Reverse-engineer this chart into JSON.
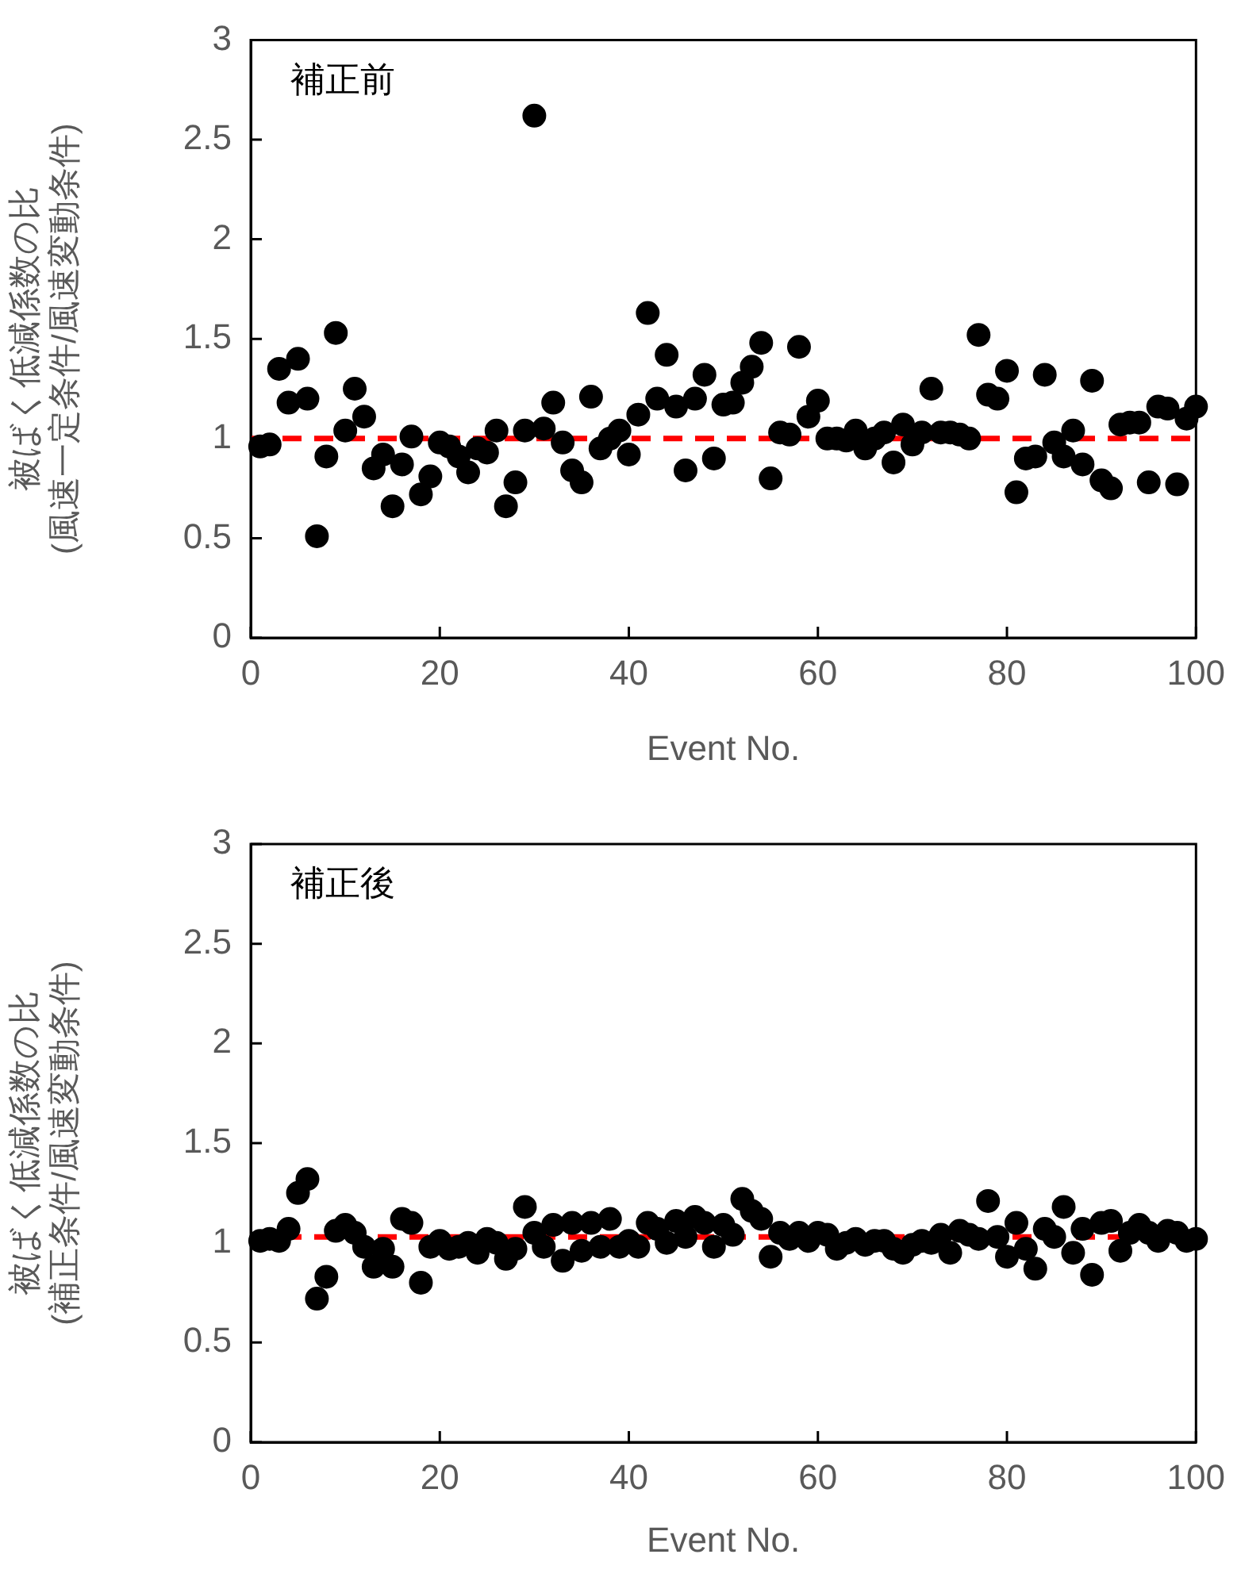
{
  "chart_data": [
    {
      "type": "scatter",
      "xlabel": "Event No.",
      "ylabel": "被ばく低減係数の比\n(風速一定条件/風速変動条件)",
      "annotations": [
        "補正前"
      ],
      "marker": "circle",
      "grid": false,
      "legend": false,
      "xlim": [
        0,
        100
      ],
      "xticks": [
        0,
        20,
        40,
        60,
        80,
        100
      ],
      "ylim": [
        0,
        3
      ],
      "yticks": [
        0,
        0.5,
        1,
        1.5,
        2,
        2.5,
        3
      ],
      "ref_lines": [
        {
          "axis": "y",
          "value": 1,
          "color": "#ff0000",
          "line_style": "dashed"
        }
      ],
      "series": [
        {
          "color": "#000000",
          "x": [
            1,
            2,
            3,
            4,
            5,
            6,
            7,
            8,
            9,
            10,
            11,
            12,
            13,
            14,
            15,
            16,
            17,
            18,
            19,
            20,
            21,
            22,
            23,
            24,
            25,
            26,
            27,
            28,
            29,
            30,
            31,
            32,
            33,
            34,
            35,
            36,
            37,
            38,
            39,
            40,
            41,
            42,
            43,
            44,
            45,
            46,
            47,
            48,
            49,
            50,
            51,
            52,
            53,
            54,
            55,
            56,
            57,
            58,
            59,
            60,
            61,
            62,
            63,
            64,
            65,
            66,
            67,
            68,
            69,
            70,
            71,
            72,
            73,
            74,
            75,
            76,
            77,
            78,
            79,
            80,
            81,
            82,
            83,
            84,
            85,
            86,
            87,
            88,
            89,
            90,
            91,
            92,
            93,
            94,
            95,
            96,
            97,
            98,
            99,
            100
          ],
          "values": [
            0.96,
            0.97,
            1.35,
            1.18,
            1.4,
            1.2,
            0.51,
            0.91,
            1.53,
            1.04,
            1.25,
            1.11,
            0.85,
            0.92,
            0.66,
            0.87,
            1.01,
            0.72,
            0.81,
            0.98,
            0.96,
            0.91,
            0.83,
            0.95,
            0.93,
            1.04,
            0.66,
            0.78,
            1.04,
            2.62,
            1.05,
            1.18,
            0.98,
            0.84,
            0.78,
            1.21,
            0.95,
            1.0,
            1.04,
            0.92,
            1.12,
            1.63,
            1.2,
            1.42,
            1.16,
            0.84,
            1.2,
            1.32,
            0.9,
            1.17,
            1.18,
            1.28,
            1.36,
            1.48,
            0.8,
            1.03,
            1.02,
            1.46,
            1.11,
            1.19,
            1.0,
            1.0,
            0.99,
            1.04,
            0.95,
            1.0,
            1.03,
            0.88,
            1.07,
            0.97,
            1.03,
            1.25,
            1.03,
            1.03,
            1.02,
            1.0,
            1.52,
            1.22,
            1.2,
            1.34,
            0.73,
            0.9,
            0.91,
            1.32,
            0.98,
            0.91,
            1.04,
            0.87,
            1.29,
            0.79,
            0.75,
            1.07,
            1.08,
            1.08,
            0.78,
            1.16,
            1.15,
            0.77,
            1.1,
            1.16
          ]
        }
      ]
    },
    {
      "type": "scatter",
      "xlabel": "Event No.",
      "ylabel": "被ばく低減係数の比\n(補正条件/風速変動条件)",
      "annotations": [
        "補正後"
      ],
      "marker": "circle",
      "grid": false,
      "legend": false,
      "xlim": [
        0,
        100
      ],
      "xticks": [
        0,
        20,
        40,
        60,
        80,
        100
      ],
      "ylim": [
        0,
        3
      ],
      "yticks": [
        0,
        0.5,
        1,
        1.5,
        2,
        2.5,
        3
      ],
      "ref_lines": [
        {
          "axis": "y",
          "value": 1.03,
          "color": "#ff0000",
          "line_style": "dashed"
        }
      ],
      "series": [
        {
          "color": "#000000",
          "x": [
            1,
            2,
            3,
            4,
            5,
            6,
            7,
            8,
            9,
            10,
            11,
            12,
            13,
            14,
            15,
            16,
            17,
            18,
            19,
            20,
            21,
            22,
            23,
            24,
            25,
            26,
            27,
            28,
            29,
            30,
            31,
            32,
            33,
            34,
            35,
            36,
            37,
            38,
            39,
            40,
            41,
            42,
            43,
            44,
            45,
            46,
            47,
            48,
            49,
            50,
            51,
            52,
            53,
            54,
            55,
            56,
            57,
            58,
            59,
            60,
            61,
            62,
            63,
            64,
            65,
            66,
            67,
            68,
            69,
            70,
            71,
            72,
            73,
            74,
            75,
            76,
            77,
            78,
            79,
            80,
            81,
            82,
            83,
            84,
            85,
            86,
            87,
            88,
            89,
            90,
            91,
            92,
            93,
            94,
            95,
            96,
            97,
            98,
            99,
            100
          ],
          "values": [
            1.01,
            1.02,
            1.01,
            1.07,
            1.25,
            1.32,
            0.72,
            0.83,
            1.06,
            1.09,
            1.05,
            0.98,
            0.88,
            0.97,
            0.88,
            1.12,
            1.1,
            0.8,
            0.98,
            1.01,
            0.97,
            0.98,
            1.0,
            0.95,
            1.02,
            1.0,
            0.92,
            0.97,
            1.18,
            1.05,
            0.98,
            1.09,
            0.91,
            1.1,
            0.96,
            1.1,
            0.98,
            1.12,
            0.98,
            1.01,
            0.98,
            1.1,
            1.07,
            1.0,
            1.11,
            1.03,
            1.13,
            1.1,
            0.98,
            1.09,
            1.04,
            1.22,
            1.16,
            1.12,
            0.93,
            1.05,
            1.02,
            1.05,
            1.01,
            1.05,
            1.04,
            0.97,
            1.0,
            1.02,
            0.99,
            1.01,
            1.01,
            0.97,
            0.95,
            0.99,
            1.01,
            1.0,
            1.04,
            0.95,
            1.06,
            1.04,
            1.02,
            1.21,
            1.03,
            0.93,
            1.1,
            0.97,
            0.87,
            1.07,
            1.03,
            1.18,
            0.95,
            1.07,
            0.84,
            1.1,
            1.11,
            0.96,
            1.05,
            1.09,
            1.05,
            1.01,
            1.06,
            1.05,
            1.01,
            1.02
          ]
        }
      ]
    }
  ]
}
